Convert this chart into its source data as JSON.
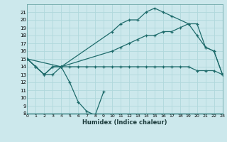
{
  "title": "",
  "xlabel": "Humidex (Indice chaleur)",
  "bg_color": "#cce8ec",
  "grid_color": "#b0d8dc",
  "line_color": "#1e6b6b",
  "series": [
    {
      "x": [
        0,
        1,
        2,
        3,
        4,
        5,
        6,
        7,
        8,
        9
      ],
      "y": [
        15,
        14,
        13,
        14,
        14,
        12,
        9.5,
        8.3,
        7.8,
        10.8
      ]
    },
    {
      "x": [
        0,
        1,
        2,
        3,
        4,
        10,
        11,
        12,
        13,
        14,
        15,
        16,
        17,
        19,
        20,
        21,
        22,
        23
      ],
      "y": [
        15,
        14,
        13,
        14,
        14,
        18.5,
        19.5,
        20,
        20,
        21,
        21.5,
        21,
        20.5,
        19.5,
        19.5,
        16.5,
        16,
        13
      ]
    },
    {
      "x": [
        0,
        4,
        10,
        11,
        12,
        13,
        14,
        15,
        16,
        17,
        18,
        19,
        20,
        21,
        22,
        23
      ],
      "y": [
        15,
        14,
        16,
        16.5,
        17,
        17.5,
        18,
        18,
        18.5,
        18.5,
        19,
        19.5,
        18,
        16.5,
        16,
        13
      ]
    },
    {
      "x": [
        0,
        1,
        2,
        3,
        4,
        5,
        6,
        7,
        8,
        9,
        10,
        11,
        12,
        13,
        14,
        15,
        16,
        17,
        18,
        19,
        20,
        21,
        22,
        23
      ],
      "y": [
        15,
        14,
        13,
        13,
        14,
        14,
        14,
        14,
        14,
        14,
        14,
        14,
        14,
        14,
        14,
        14,
        14,
        14,
        14,
        14,
        13.5,
        13.5,
        13.5,
        13
      ]
    }
  ],
  "xlim": [
    0,
    23
  ],
  "ylim": [
    8,
    22
  ],
  "yticks": [
    8,
    9,
    10,
    11,
    12,
    13,
    14,
    15,
    16,
    17,
    18,
    19,
    20,
    21
  ],
  "xticks": [
    0,
    1,
    2,
    3,
    4,
    5,
    6,
    7,
    8,
    9,
    10,
    11,
    12,
    13,
    14,
    15,
    16,
    17,
    18,
    19,
    20,
    21,
    22,
    23
  ]
}
